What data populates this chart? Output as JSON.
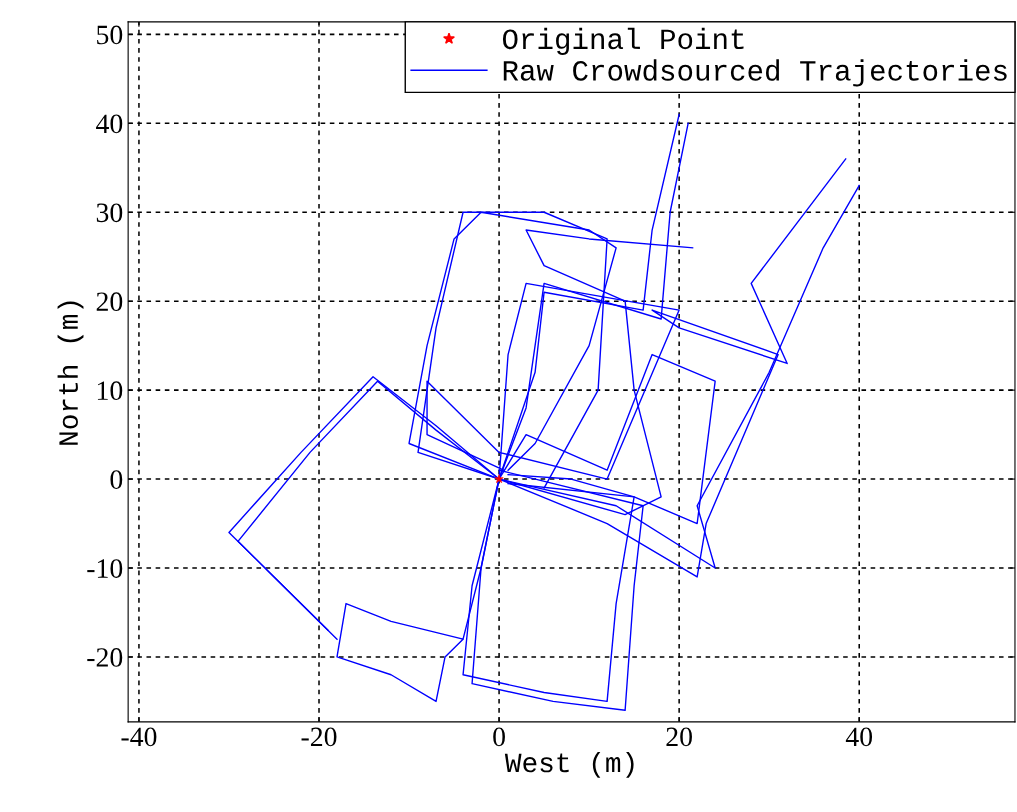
{
  "chart_data": {
    "type": "line",
    "xlabel": "West (m)",
    "ylabel": "North (m)",
    "xlim": [
      -41.2,
      57.3
    ],
    "ylim": [
      -27.3,
      51.4
    ],
    "xticks": [
      -40,
      -20,
      0,
      20,
      40
    ],
    "yticks": [
      -20,
      -10,
      0,
      10,
      20,
      30,
      40,
      50
    ],
    "grid": true,
    "legend": "top right",
    "line_style": "solid",
    "marker": "none",
    "series": [
      {
        "name": "Original Point",
        "type": "scatter",
        "marker": "star",
        "color": "#ff0000",
        "x": [
          0
        ],
        "values": [
          0
        ]
      },
      {
        "name": "Raw Crowdsourced Trajectories",
        "color": "#0000ff",
        "x": [
          0,
          -7,
          -14,
          -22,
          -30,
          -25,
          -19
        ],
        "values": [
          0,
          6,
          11.5,
          3,
          -6,
          -11,
          -17
        ]
      },
      {
        "color": "#0000ff",
        "x": [
          0,
          -7,
          -13.5,
          -21,
          -29,
          -24,
          -18
        ],
        "values": [
          0,
          5.5,
          11,
          3,
          -7,
          -12,
          -18
        ]
      },
      {
        "color": "#0000ff",
        "x": [
          0,
          -2,
          -4,
          -12,
          -17,
          -18,
          -12,
          -7,
          -6,
          -4
        ],
        "values": [
          0,
          -10,
          -18,
          -16,
          -14,
          -20,
          -22,
          -25,
          -20,
          -18
        ]
      },
      {
        "color": "#0000ff",
        "x": [
          0,
          -3,
          -4,
          5,
          12,
          13,
          15,
          8,
          1
        ],
        "values": [
          0,
          -12,
          -22,
          -24,
          -25,
          -14,
          -2,
          0,
          0.5
        ]
      },
      {
        "color": "#0000ff",
        "x": [
          0,
          -2,
          -3,
          6,
          14,
          15,
          16,
          0
        ],
        "values": [
          0,
          -10,
          -23,
          -25,
          -26,
          -12,
          -3,
          1
        ]
      },
      {
        "color": "#0000ff",
        "x": [
          0,
          -10,
          -8,
          -5,
          -2,
          10,
          13,
          10,
          4,
          1
        ],
        "values": [
          0,
          4,
          15,
          27,
          30,
          28,
          26,
          15,
          4,
          1
        ]
      },
      {
        "color": "#0000ff",
        "x": [
          0,
          -9,
          -7,
          -4,
          5,
          12,
          11,
          5
        ],
        "values": [
          0,
          3,
          17,
          30,
          30,
          27,
          10,
          -1
        ]
      },
      {
        "color": "#0000ff",
        "x": [
          0,
          3,
          5,
          18,
          19,
          21
        ],
        "values": [
          0,
          8,
          22,
          18,
          30,
          40
        ]
      },
      {
        "color": "#0000ff",
        "x": [
          0,
          4,
          5,
          16,
          17,
          20
        ],
        "values": [
          0,
          12,
          21,
          19,
          28,
          41
        ]
      },
      {
        "color": "#0000ff",
        "x": [
          0,
          14,
          18,
          15,
          14,
          5,
          3,
          10,
          21.5
        ],
        "values": [
          0,
          -4,
          -2,
          10,
          20,
          24,
          28,
          27,
          26
        ]
      },
      {
        "color": "#0000ff",
        "x": [
          0,
          13,
          24,
          22,
          30,
          36,
          40
        ],
        "values": [
          0,
          -3,
          -10,
          -3,
          12,
          26,
          33
        ]
      },
      {
        "color": "#0000ff",
        "x": [
          0,
          12,
          22,
          23,
          31,
          17,
          20,
          32,
          28,
          38.5
        ],
        "values": [
          0,
          -5,
          -11,
          -5,
          14,
          19,
          17,
          13,
          22,
          36
        ]
      },
      {
        "color": "#0000ff",
        "x": [
          0,
          3,
          12,
          17,
          24,
          22,
          15,
          1
        ],
        "values": [
          0,
          5,
          1,
          14,
          11,
          -5,
          -2,
          -0.5
        ]
      },
      {
        "color": "#0000ff",
        "x": [
          0,
          1,
          3,
          20,
          12,
          0,
          -8,
          -8,
          0.5
        ],
        "values": [
          0,
          14,
          22,
          19,
          0,
          3,
          11,
          5,
          1
        ]
      }
    ]
  }
}
